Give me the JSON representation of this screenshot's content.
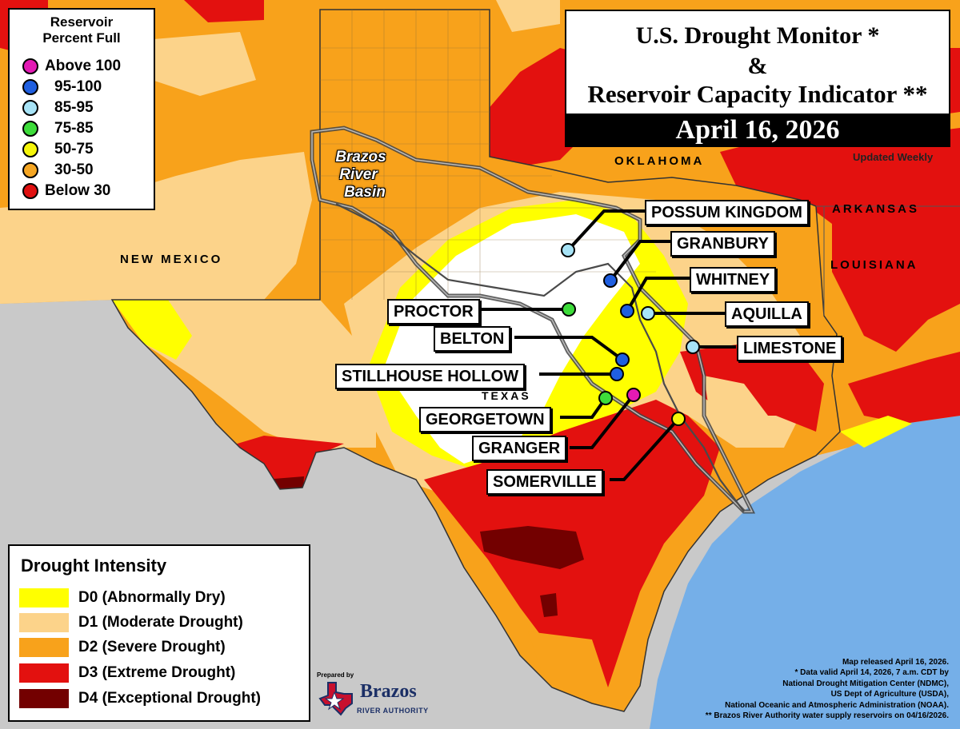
{
  "title": {
    "line1": "U.S. Drought Monitor *",
    "line2": "&",
    "line3": "Reservoir Capacity Indicator **",
    "date": "April 16, 2026",
    "updated": "Updated Weekly"
  },
  "reservoir_legend": {
    "title_line1": "Reservoir",
    "title_line2": "Percent Full",
    "items": [
      {
        "label": "Above 100",
        "color": "#e31ab4"
      },
      {
        "label": "95-100",
        "color": "#1f5fe0"
      },
      {
        "label": "85-95",
        "color": "#a7e3f6"
      },
      {
        "label": "75-85",
        "color": "#3ddc3a"
      },
      {
        "label": "50-75",
        "color": "#f5f50a"
      },
      {
        "label": "30-50",
        "color": "#f5a623"
      },
      {
        "label": "Below 30",
        "color": "#e01010"
      }
    ]
  },
  "drought_legend": {
    "title": "Drought Intensity",
    "items": [
      {
        "label": "D0 (Abnormally Dry)",
        "color": "#ffff00"
      },
      {
        "label": "D1 (Moderate Drought)",
        "color": "#fcd38a"
      },
      {
        "label": "D2 (Severe Drought)",
        "color": "#f8a21b"
      },
      {
        "label": "D3 (Extreme Drought)",
        "color": "#e3110f"
      },
      {
        "label": "D4 (Exceptional Drought)",
        "color": "#730000"
      }
    ]
  },
  "states": {
    "oklahoma": "OKLAHOMA",
    "arkansas": "ARKANSAS",
    "louisiana": "LOUISIANA",
    "new_mexico": "NEW MEXICO",
    "texas": "TEXAS"
  },
  "basin": {
    "line1": "Brazos",
    "line2": "River",
    "line3": "Basin"
  },
  "reservoirs": [
    {
      "name": "POSSUM KINGDOM",
      "category": "85-95",
      "color": "#a7e3f6"
    },
    {
      "name": "GRANBURY",
      "category": "95-100",
      "color": "#1f5fe0"
    },
    {
      "name": "WHITNEY",
      "category": "95-100",
      "color": "#1f5fe0"
    },
    {
      "name": "AQUILLA",
      "category": "85-95",
      "color": "#a7e3f6"
    },
    {
      "name": "PROCTOR",
      "category": "75-85",
      "color": "#3ddc3a"
    },
    {
      "name": "BELTON",
      "category": "95-100",
      "color": "#1f5fe0"
    },
    {
      "name": "LIMESTONE",
      "category": "85-95",
      "color": "#a7e3f6"
    },
    {
      "name": "STILLHOUSE HOLLOW",
      "category": "95-100",
      "color": "#1f5fe0"
    },
    {
      "name": "GEORGETOWN",
      "category": "75-85",
      "color": "#3ddc3a"
    },
    {
      "name": "GRANGER",
      "category": "Above 100",
      "color": "#e31ab4"
    },
    {
      "name": "SOMERVILLE",
      "category": "50-75",
      "color": "#f5f50a"
    }
  ],
  "notes": [
    "Map released April 16, 2026.",
    "* Data valid April 14, 2026, 7 a.m. CDT by",
    "National Drought Mitigation Center (NDMC),",
    "US Dept of Agriculture (USDA),",
    "National Oceanic and Atmospheric Administration (NOAA).",
    "** Brazos River Authority water supply reservoirs on 04/16/2026."
  ],
  "logo": {
    "prepared_by": "Prepared by",
    "name": "Brazos",
    "subtitle": "RIVER AUTHORITY"
  }
}
